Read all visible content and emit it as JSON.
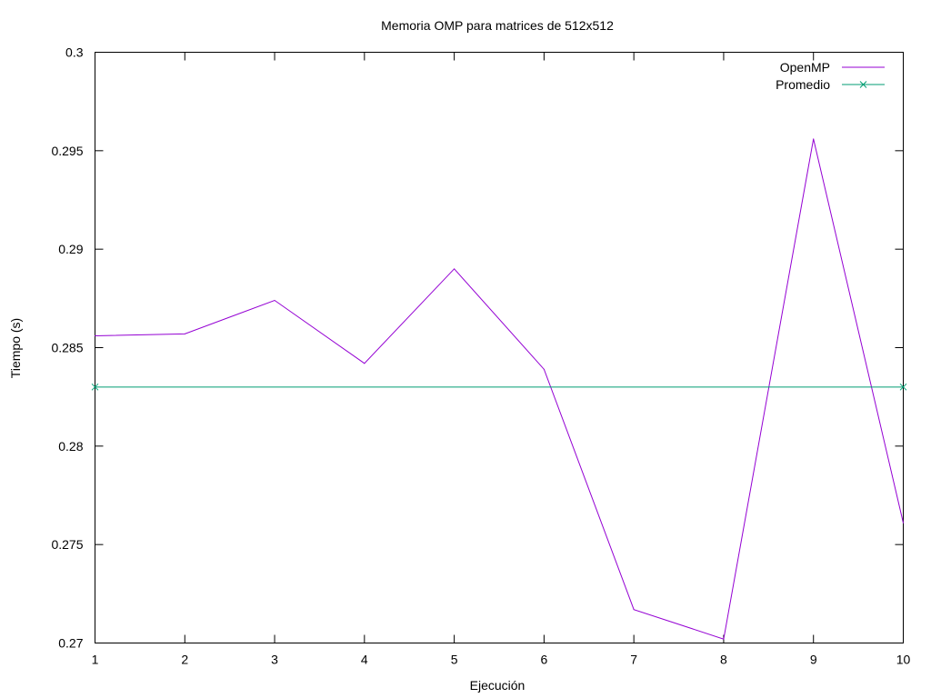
{
  "chart_data": {
    "type": "line",
    "title": "Memoria OMP para matrices de 512x512",
    "xlabel": "Ejecución",
    "ylabel": "Tiempo (s)",
    "xlim": [
      1,
      10
    ],
    "ylim": [
      0.27,
      0.3
    ],
    "xticks": [
      1,
      2,
      3,
      4,
      5,
      6,
      7,
      8,
      9,
      10
    ],
    "yticks": [
      0.27,
      0.275,
      0.28,
      0.285,
      0.29,
      0.295,
      0.3
    ],
    "ytick_labels": [
      "0.27",
      "0.275",
      "0.28",
      "0.285",
      "0.29",
      "0.295",
      "0.3"
    ],
    "grid": false,
    "legend_position": "top-right",
    "series": [
      {
        "name": "OpenMP",
        "color": "#9400d3",
        "marker": "none",
        "x": [
          1,
          2,
          3,
          4,
          5,
          6,
          7,
          8,
          9,
          10
        ],
        "y": [
          0.2856,
          0.2857,
          0.2874,
          0.2842,
          0.289,
          0.2839,
          0.2717,
          0.2702,
          0.2956,
          0.2761
        ]
      },
      {
        "name": "Promedio",
        "color": "#009e73",
        "marker": "x",
        "x": [
          1,
          10
        ],
        "y": [
          0.283,
          0.283
        ]
      }
    ]
  }
}
